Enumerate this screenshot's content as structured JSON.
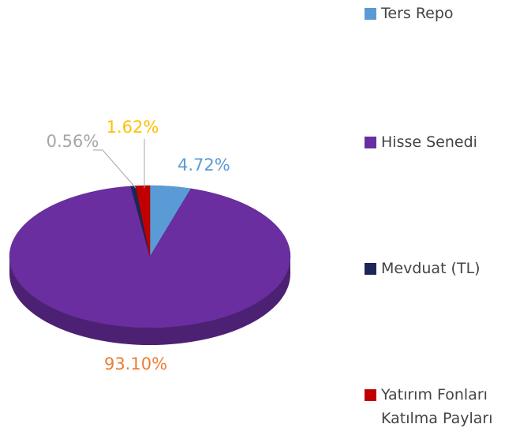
{
  "chart_data": {
    "type": "pie",
    "categories": [
      "Ters Repo",
      "Hisse Senedi",
      "Mevduat (TL)",
      "Yatırım Fonları Katılma Payları"
    ],
    "values": [
      4.72,
      93.1,
      0.56,
      1.62
    ],
    "value_labels": [
      "4.72%",
      "93.10%",
      "0.56%",
      "1.62%"
    ],
    "colors": [
      "#5b9bd5",
      "#6a2ea0",
      "#1c2757",
      "#c00000"
    ],
    "label_colors": [
      "#5b9bd5",
      "#ed7d31",
      "#a6a6a6",
      "#ffc000"
    ],
    "legend": "right"
  }
}
